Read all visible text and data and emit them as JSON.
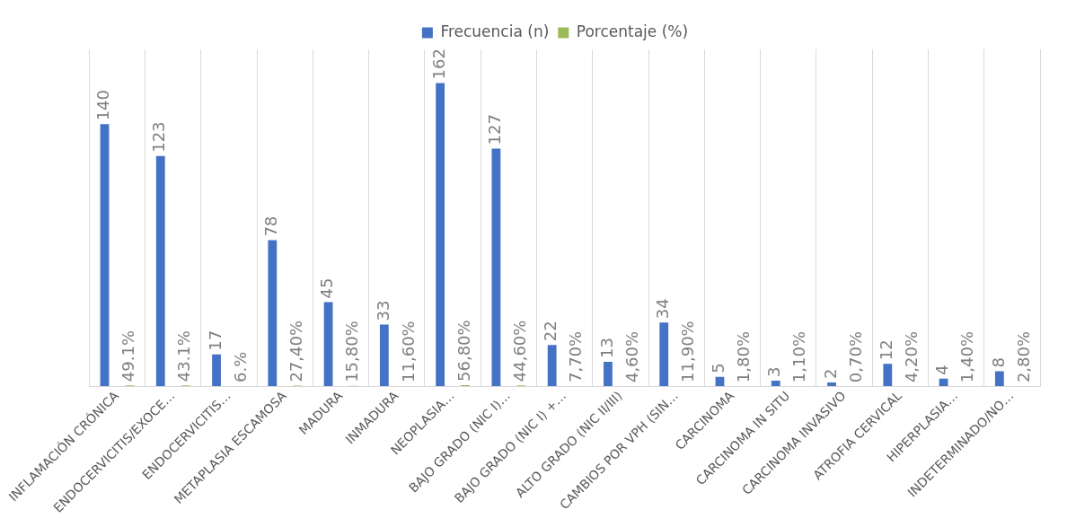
{
  "chart_data": {
    "type": "bar",
    "categories": [
      "INFLAMACIÓN CRÓNICA",
      "ENDOCERVICITIS/EXOCE…",
      "ENDOCERVICITIS…",
      "METAPLASIA ESCAMOSA",
      "MADURA",
      "INMADURA",
      "NEOPLASIA…",
      "BAJO GRADO (NIC I)…",
      "BAJO GRADO (NIC I) +…",
      "ALTO GRADO (NIC II/III)",
      "CAMBIOS POR VPH (SIN…",
      "CARCINOMA",
      "CARCINOMA IN SITU",
      "CARCINOMA INVASIVO",
      "ATROFIA CERVICAL",
      "HIPERPLASIA…",
      "INDETERMINADO/NO…"
    ],
    "series": [
      {
        "name": "Frecuencia (n)",
        "color": "#4472c4",
        "values": [
          140,
          123,
          17,
          78,
          45,
          33,
          162,
          127,
          22,
          13,
          34,
          5,
          3,
          2,
          12,
          4,
          8
        ]
      },
      {
        "name": "Porcentaje (%)",
        "color": "#9bbb59",
        "values": [
          0.491,
          0.431,
          0.06,
          0.274,
          0.158,
          0.116,
          0.568,
          0.446,
          0.077,
          0.046,
          0.119,
          0.018,
          0.011,
          0.007,
          0.042,
          0.014,
          0.028
        ],
        "value_labels": [
          "49.1%",
          "43.1%",
          "6.%",
          "27,40%",
          "15,80%",
          "11,60%",
          "56,80%",
          "44,60%",
          "7,70%",
          "4,60%",
          "11,90%",
          "1,80%",
          "1,10%",
          "0,70%",
          "4,20%",
          "1,40%",
          "2,80%"
        ]
      }
    ],
    "data_labels": true,
    "grid": "x",
    "legend": "top",
    "tick_labels": "x"
  }
}
